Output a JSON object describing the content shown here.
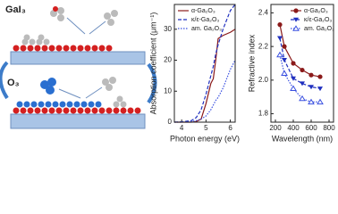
{
  "diagram": {
    "labels": [
      "GaI₃",
      "O₃"
    ]
  },
  "chart_data": [
    {
      "type": "line",
      "ylabel": "Absorption coefficient (μm⁻¹)",
      "xlabel": "Photon energy (eV)",
      "xlim": [
        3.7,
        6.2
      ],
      "xticks": [
        4,
        5,
        6
      ],
      "ylim": [
        0,
        38
      ],
      "yticks": [
        0,
        10,
        20,
        30
      ],
      "legend": "upper-left",
      "x": [
        3.7,
        4.0,
        4.4,
        4.6,
        4.8,
        5.0,
        5.2,
        5.3,
        5.4,
        5.5,
        5.7,
        6.0,
        6.2
      ],
      "series": [
        {
          "name": "α-Ga₂O₃",
          "color": "#8b1a1a",
          "dash": "solid",
          "values": [
            0,
            0,
            0,
            0.2,
            1,
            6,
            12.5,
            14,
            20,
            27,
            28,
            29,
            30
          ]
        },
        {
          "name": "κ/ε-Ga₂O₃",
          "color": "#1f2fbf",
          "dash": "dashed",
          "values": [
            0,
            0.1,
            0.5,
            1.5,
            4,
            9,
            15,
            18,
            22,
            25,
            30,
            36,
            38
          ]
        },
        {
          "name": "am. Ga₂O₃",
          "color": "#3a50e0",
          "dash": "dotted",
          "values": [
            0,
            0,
            0.2,
            0.5,
            1,
            2,
            4,
            5.5,
            7,
            8,
            11,
            17,
            20
          ]
        }
      ]
    },
    {
      "type": "line",
      "ylabel": "Refractive index",
      "xlabel": "Wavelength (nm)",
      "xlim": [
        150,
        850
      ],
      "xticks": [
        200,
        400,
        600,
        800
      ],
      "ylim": [
        1.75,
        2.45
      ],
      "yticks": [
        {
          "value": 1.8,
          "label": "1.8"
        },
        {
          "value": 2.0,
          "label": "2.0"
        },
        {
          "value": 2.2,
          "label": "2.2"
        },
        {
          "value": 2.4,
          "label": "2.4"
        }
      ],
      "legend": "upper-right",
      "x": [
        250,
        300,
        400,
        500,
        600,
        700
      ],
      "series": [
        {
          "name": "α-Ga₂O₃",
          "color": "#8b1a1a",
          "dash": "solid",
          "marker": "circle",
          "values": [
            2.33,
            2.2,
            2.1,
            2.06,
            2.03,
            2.02
          ]
        },
        {
          "name": "κ/ε-Ga₂O₃",
          "color": "#1f2fbf",
          "dash": "dashed",
          "marker": "triangle-down",
          "values": [
            2.25,
            2.12,
            2.01,
            1.98,
            1.96,
            1.95
          ]
        },
        {
          "name": "am. Ga₂O₃",
          "color": "#3a50e0",
          "dash": "dotted",
          "marker": "triangle-open",
          "values": [
            2.15,
            2.04,
            1.95,
            1.89,
            1.87,
            1.87
          ]
        }
      ]
    }
  ]
}
